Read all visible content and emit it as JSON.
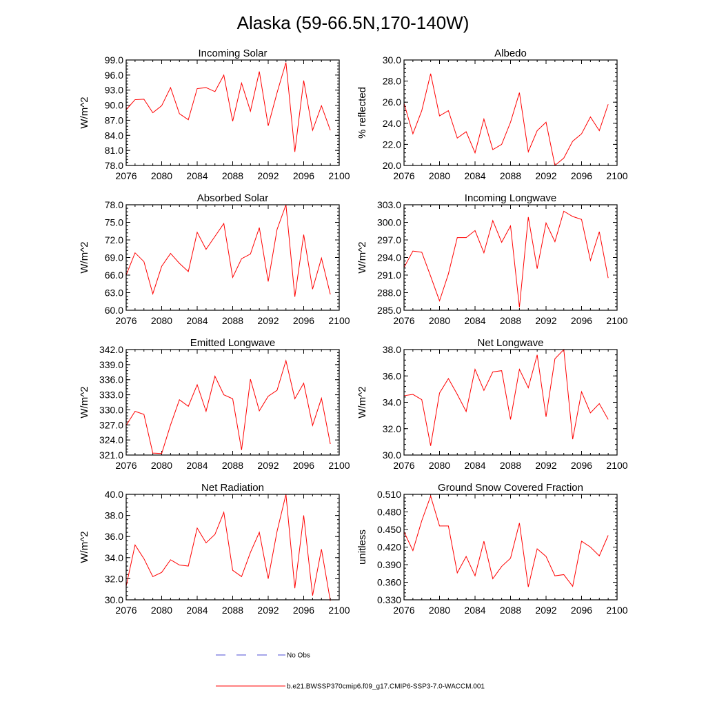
{
  "title": "Alaska (59-66.5N,170-140W)",
  "legend": {
    "no_obs_label": "No Obs",
    "model_label": "b.e21.BWSSP370cmip6.f09_g17.CMIP6-SSP3-7.0-WACCM.001",
    "model_color": "#ff0000",
    "obs_color": "#4b4bd6"
  },
  "chart_data": [
    {
      "type": "line",
      "title": "Incoming Solar",
      "xlabel": "",
      "ylabel": "W/m^2",
      "xlim": [
        2076,
        2100
      ],
      "ylim": [
        78.0,
        99.0
      ],
      "xticks": [
        2076,
        2080,
        2084,
        2088,
        2092,
        2096,
        2100
      ],
      "xtick_labels": [
        "2076",
        "2080",
        "2084",
        "2088",
        "2092",
        "2096",
        "2100"
      ],
      "yticks": [
        78.0,
        81.0,
        84.0,
        87.0,
        90.0,
        93.0,
        96.0,
        99.0
      ],
      "ytick_labels": [
        "78.0",
        "81.0",
        "84.0",
        "87.0",
        "90.0",
        "93.0",
        "96.0",
        "99.0"
      ],
      "x": [
        2076,
        2077,
        2078,
        2079,
        2080,
        2081,
        2082,
        2083,
        2084,
        2085,
        2086,
        2087,
        2088,
        2089,
        2090,
        2091,
        2092,
        2093,
        2094,
        2095,
        2096,
        2097,
        2098,
        2099
      ],
      "series": [
        {
          "name": "b.e21.BWSSP370cmip6.f09_g17.CMIP6-SSP3-7.0-WACCM.001",
          "values": [
            89.1,
            91.1,
            91.2,
            88.5,
            89.9,
            93.5,
            88.3,
            87.1,
            93.3,
            93.5,
            92.7,
            96.0,
            86.8,
            94.4,
            88.8,
            96.7,
            85.9,
            92.5,
            98.5,
            80.7,
            94.9,
            85.0,
            89.9,
            85.0
          ]
        }
      ]
    },
    {
      "type": "line",
      "title": "Albedo",
      "xlabel": "",
      "ylabel": "% reflected",
      "xlim": [
        2076,
        2100
      ],
      "ylim": [
        20.0,
        30.0
      ],
      "xticks": [
        2076,
        2080,
        2084,
        2088,
        2092,
        2096,
        2100
      ],
      "xtick_labels": [
        "2076",
        "2080",
        "2084",
        "2088",
        "2092",
        "2096",
        "2100"
      ],
      "yticks": [
        20.0,
        22.0,
        24.0,
        26.0,
        28.0,
        30.0
      ],
      "ytick_labels": [
        "20.0",
        "22.0",
        "24.0",
        "26.0",
        "28.0",
        "30.0"
      ],
      "x": [
        2076,
        2077,
        2078,
        2079,
        2080,
        2081,
        2082,
        2083,
        2084,
        2085,
        2086,
        2087,
        2088,
        2089,
        2090,
        2091,
        2092,
        2093,
        2094,
        2095,
        2096,
        2097,
        2098,
        2099
      ],
      "series": [
        {
          "name": "b.e21.BWSSP370cmip6.f09_g17.CMIP6-SSP3-7.0-WACCM.001",
          "values": [
            25.9,
            23.0,
            25.2,
            28.7,
            24.7,
            25.2,
            22.6,
            23.2,
            21.2,
            24.4,
            21.5,
            22.0,
            24.1,
            26.9,
            21.3,
            23.3,
            24.1,
            20.0,
            20.7,
            22.3,
            23.0,
            24.6,
            23.3,
            25.8
          ]
        }
      ]
    },
    {
      "type": "line",
      "title": "Absorbed Solar",
      "xlabel": "",
      "ylabel": "W/m^2",
      "xlim": [
        2076,
        2100
      ],
      "ylim": [
        60.0,
        78.0
      ],
      "xticks": [
        2076,
        2080,
        2084,
        2088,
        2092,
        2096,
        2100
      ],
      "xtick_labels": [
        "2076",
        "2080",
        "2084",
        "2088",
        "2092",
        "2096",
        "2100"
      ],
      "yticks": [
        60.0,
        63.0,
        66.0,
        69.0,
        72.0,
        75.0,
        78.0
      ],
      "ytick_labels": [
        "60.0",
        "63.0",
        "66.0",
        "69.0",
        "72.0",
        "75.0",
        "78.0"
      ],
      "x": [
        2076,
        2077,
        2078,
        2079,
        2080,
        2081,
        2082,
        2083,
        2084,
        2085,
        2086,
        2087,
        2088,
        2089,
        2090,
        2091,
        2092,
        2093,
        2094,
        2095,
        2096,
        2097,
        2098,
        2099
      ],
      "series": [
        {
          "name": "b.e21.BWSSP370cmip6.f09_g17.CMIP6-SSP3-7.0-WACCM.001",
          "values": [
            66.0,
            69.8,
            68.3,
            62.8,
            67.5,
            69.7,
            68.0,
            66.6,
            73.3,
            70.4,
            72.6,
            74.8,
            65.6,
            68.8,
            69.6,
            74.1,
            64.9,
            73.8,
            78.0,
            62.3,
            72.9,
            63.6,
            68.9,
            62.7
          ]
        }
      ]
    },
    {
      "type": "line",
      "title": "Incoming Longwave",
      "xlabel": "",
      "ylabel": "W/m^2",
      "xlim": [
        2076,
        2100
      ],
      "ylim": [
        285.0,
        303.0
      ],
      "xticks": [
        2076,
        2080,
        2084,
        2088,
        2092,
        2096,
        2100
      ],
      "xtick_labels": [
        "2076",
        "2080",
        "2084",
        "2088",
        "2092",
        "2096",
        "2100"
      ],
      "yticks": [
        285.0,
        288.0,
        291.0,
        294.0,
        297.0,
        300.0,
        303.0
      ],
      "ytick_labels": [
        "285.0",
        "288.0",
        "291.0",
        "294.0",
        "297.0",
        "300.0",
        "303.0"
      ],
      "x": [
        2076,
        2077,
        2078,
        2079,
        2080,
        2081,
        2082,
        2083,
        2084,
        2085,
        2086,
        2087,
        2088,
        2089,
        2090,
        2091,
        2092,
        2093,
        2094,
        2095,
        2096,
        2097,
        2098,
        2099
      ],
      "series": [
        {
          "name": "b.e21.BWSSP370cmip6.f09_g17.CMIP6-SSP3-7.0-WACCM.001",
          "values": [
            292.3,
            295.1,
            294.9,
            290.8,
            286.6,
            291.2,
            297.4,
            297.4,
            298.6,
            294.8,
            300.3,
            296.6,
            299.4,
            285.5,
            300.9,
            292.1,
            299.9,
            296.7,
            301.9,
            301.0,
            300.5,
            293.5,
            298.4,
            290.5
          ]
        }
      ]
    },
    {
      "type": "line",
      "title": "Emitted Longwave",
      "xlabel": "",
      "ylabel": "W/m^2",
      "xlim": [
        2076,
        2100
      ],
      "ylim": [
        321.0,
        342.0
      ],
      "xticks": [
        2076,
        2080,
        2084,
        2088,
        2092,
        2096,
        2100
      ],
      "xtick_labels": [
        "2076",
        "2080",
        "2084",
        "2088",
        "2092",
        "2096",
        "2100"
      ],
      "yticks": [
        321.0,
        324.0,
        327.0,
        330.0,
        333.0,
        336.0,
        339.0,
        342.0
      ],
      "ytick_labels": [
        "321.0",
        "324.0",
        "327.0",
        "330.0",
        "333.0",
        "336.0",
        "339.0",
        "342.0"
      ],
      "x": [
        2076,
        2077,
        2078,
        2079,
        2080,
        2081,
        2082,
        2083,
        2084,
        2085,
        2086,
        2087,
        2088,
        2089,
        2090,
        2091,
        2092,
        2093,
        2094,
        2095,
        2096,
        2097,
        2098,
        2099
      ],
      "series": [
        {
          "name": "b.e21.BWSSP370cmip6.f09_g17.CMIP6-SSP3-7.0-WACCM.001",
          "values": [
            326.9,
            329.7,
            329.1,
            321.4,
            321.3,
            327.0,
            332.0,
            330.7,
            335.0,
            329.7,
            336.7,
            333.0,
            332.2,
            322.0,
            336.1,
            329.8,
            332.7,
            333.9,
            339.8,
            332.2,
            335.3,
            326.9,
            332.3,
            323.2
          ]
        }
      ]
    },
    {
      "type": "line",
      "title": "Net Longwave",
      "xlabel": "",
      "ylabel": "W/m^2",
      "xlim": [
        2076,
        2100
      ],
      "ylim": [
        30.0,
        38.0
      ],
      "xticks": [
        2076,
        2080,
        2084,
        2088,
        2092,
        2096,
        2100
      ],
      "xtick_labels": [
        "2076",
        "2080",
        "2084",
        "2088",
        "2092",
        "2096",
        "2100"
      ],
      "yticks": [
        30.0,
        32.0,
        34.0,
        36.0,
        38.0
      ],
      "ytick_labels": [
        "30.0",
        "32.0",
        "34.0",
        "36.0",
        "38.0"
      ],
      "x": [
        2076,
        2077,
        2078,
        2079,
        2080,
        2081,
        2082,
        2083,
        2084,
        2085,
        2086,
        2087,
        2088,
        2089,
        2090,
        2091,
        2092,
        2093,
        2094,
        2095,
        2096,
        2097,
        2098,
        2099
      ],
      "series": [
        {
          "name": "b.e21.BWSSP370cmip6.f09_g17.CMIP6-SSP3-7.0-WACCM.001",
          "values": [
            34.5,
            34.6,
            34.2,
            30.7,
            34.7,
            35.8,
            34.6,
            33.3,
            36.5,
            34.9,
            36.3,
            36.4,
            32.7,
            36.5,
            35.1,
            37.6,
            32.9,
            37.3,
            38.0,
            31.2,
            34.8,
            33.2,
            33.9,
            32.7
          ]
        }
      ]
    },
    {
      "type": "line",
      "title": "Net Radiation",
      "xlabel": "",
      "ylabel": "W/m^2",
      "xlim": [
        2076,
        2100
      ],
      "ylim": [
        30.0,
        40.0
      ],
      "xticks": [
        2076,
        2080,
        2084,
        2088,
        2092,
        2096,
        2100
      ],
      "xtick_labels": [
        "2076",
        "2080",
        "2084",
        "2088",
        "2092",
        "2096",
        "2100"
      ],
      "yticks": [
        30.0,
        32.0,
        34.0,
        36.0,
        38.0,
        40.0
      ],
      "ytick_labels": [
        "30.0",
        "32.0",
        "34.0",
        "36.0",
        "38.0",
        "40.0"
      ],
      "x": [
        2076,
        2077,
        2078,
        2079,
        2080,
        2081,
        2082,
        2083,
        2084,
        2085,
        2086,
        2087,
        2088,
        2089,
        2090,
        2091,
        2092,
        2093,
        2094,
        2095,
        2096,
        2097,
        2098,
        2099
      ],
      "series": [
        {
          "name": "b.e21.BWSSP370cmip6.f09_g17.CMIP6-SSP3-7.0-WACCM.001",
          "values": [
            31.3,
            35.2,
            33.9,
            32.2,
            32.6,
            33.8,
            33.3,
            33.2,
            36.8,
            35.4,
            36.2,
            38.3,
            32.8,
            32.2,
            34.5,
            36.4,
            32.0,
            36.5,
            40.0,
            31.1,
            38.0,
            30.4,
            34.8,
            29.9
          ]
        }
      ]
    },
    {
      "type": "line",
      "title": "Ground Snow Covered Fraction",
      "xlabel": "",
      "ylabel": "unitless",
      "xlim": [
        2076,
        2100
      ],
      "ylim": [
        0.33,
        0.51
      ],
      "xticks": [
        2076,
        2080,
        2084,
        2088,
        2092,
        2096,
        2100
      ],
      "xtick_labels": [
        "2076",
        "2080",
        "2084",
        "2088",
        "2092",
        "2096",
        "2100"
      ],
      "yticks": [
        0.33,
        0.36,
        0.39,
        0.42,
        0.45,
        0.48,
        0.51
      ],
      "ytick_labels": [
        "0.330",
        "0.360",
        "0.390",
        "0.420",
        "0.450",
        "0.480",
        "0.510"
      ],
      "x": [
        2076,
        2077,
        2078,
        2079,
        2080,
        2081,
        2082,
        2083,
        2084,
        2085,
        2086,
        2087,
        2088,
        2089,
        2090,
        2091,
        2092,
        2093,
        2094,
        2095,
        2096,
        2097,
        2098,
        2099
      ],
      "series": [
        {
          "name": "b.e21.BWSSP370cmip6.f09_g17.CMIP6-SSP3-7.0-WACCM.001",
          "values": [
            0.446,
            0.414,
            0.465,
            0.507,
            0.456,
            0.456,
            0.376,
            0.404,
            0.371,
            0.43,
            0.366,
            0.387,
            0.401,
            0.461,
            0.352,
            0.417,
            0.404,
            0.371,
            0.373,
            0.353,
            0.43,
            0.42,
            0.405,
            0.44
          ]
        }
      ]
    }
  ]
}
